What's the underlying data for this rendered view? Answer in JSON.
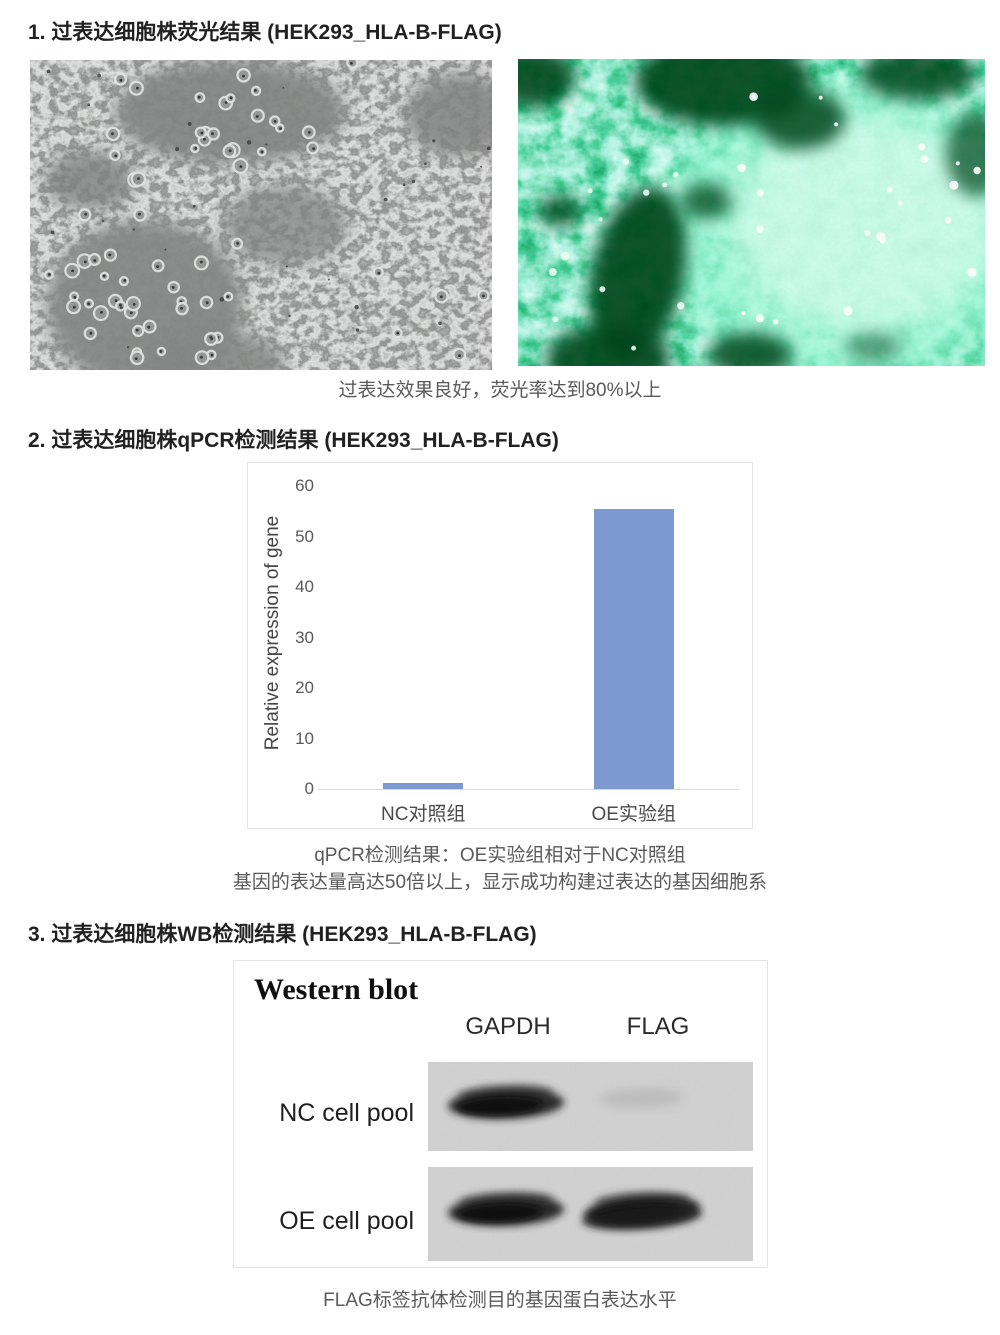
{
  "sections": {
    "s1": {
      "title": "1. 过表达细胞株荧光结果 (HEK293_HLA-B-FLAG)",
      "caption": "过表达效果良好，荧光率达到80%以上"
    },
    "s2": {
      "title": "2. 过表达细胞株qPCR检测结果 (HEK293_HLA-B-FLAG)",
      "caption_line1": "qPCR检测结果：OE实验组相对于NC对照组",
      "caption_line2": "基因的表达量高达50倍以上，显示成功构建过表达的基因细胞系"
    },
    "s3": {
      "title": "3. 过表达细胞株WB检测结果 (HEK293_HLA-B-FLAG)",
      "caption": "FLAG标签抗体检测目的基因蛋白表达水平"
    }
  },
  "chart_data": {
    "type": "bar",
    "categories": [
      "NC对照组",
      "OE实验组"
    ],
    "values": [
      1.2,
      55.5
    ],
    "title": "",
    "xlabel": "",
    "ylabel": "Relative expression of gene",
    "yticks": [
      0,
      10,
      20,
      30,
      40,
      50,
      60
    ],
    "ylim": [
      0,
      60
    ],
    "bar_color": "#7D99D1",
    "axis_color": "#d9d9d9",
    "grid": false,
    "legend": "none"
  },
  "western_blot": {
    "title": "Western blot",
    "columns": [
      "GAPDH",
      "FLAG"
    ],
    "rows": [
      {
        "label": "NC cell pool",
        "bands": {
          "GAPDH": "strong",
          "FLAG": "faint"
        }
      },
      {
        "label": "OE cell pool",
        "bands": {
          "GAPDH": "strong",
          "FLAG": "strong"
        }
      }
    ]
  }
}
